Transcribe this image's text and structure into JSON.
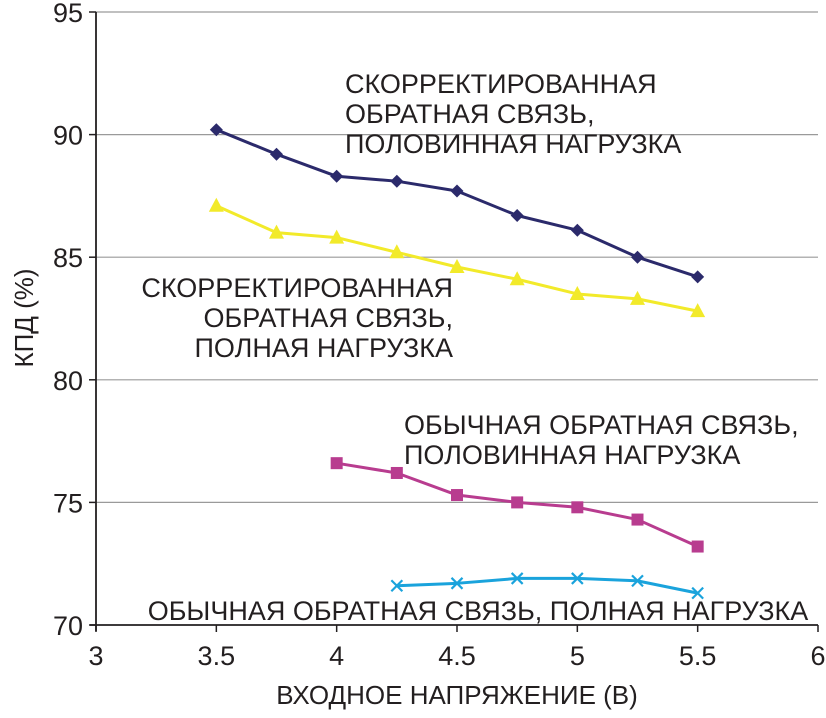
{
  "chart_data": {
    "type": "line",
    "xlabel": "ВХОДНОЕ НАПРЯЖЕНИЕ (В)",
    "ylabel": "КПД (%)",
    "xlim": [
      3,
      6
    ],
    "ylim": [
      70,
      95
    ],
    "x_ticks": [
      "3",
      "3.5",
      "4",
      "4.5",
      "5",
      "5.5",
      "6"
    ],
    "y_ticks": [
      "70",
      "75",
      "80",
      "85",
      "90",
      "95"
    ],
    "grid": "horizontal",
    "series": [
      {
        "label_lines": [
          "СКОРРЕКТИРОВАННАЯ",
          "ОБРАТНАЯ СВЯЗЬ,",
          "ПОЛОВИННАЯ НАГРУЗКА"
        ],
        "color": "#2b2a6b",
        "marker": "diamond",
        "x": [
          3.5,
          3.75,
          4.0,
          4.25,
          4.5,
          4.75,
          5.0,
          5.25,
          5.5
        ],
        "values": [
          90.2,
          89.2,
          88.3,
          88.1,
          87.7,
          86.7,
          86.1,
          85.0,
          84.2
        ]
      },
      {
        "label_lines": [
          "СКОРРЕКТИРОВАННАЯ",
          "ОБРАТНАЯ СВЯЗЬ,",
          "ПОЛНАЯ НАГРУЗКА"
        ],
        "color": "#f2ea2a",
        "marker": "triangle",
        "x": [
          3.5,
          3.75,
          4.0,
          4.25,
          4.5,
          4.75,
          5.0,
          5.25,
          5.5
        ],
        "values": [
          87.1,
          86.0,
          85.8,
          85.2,
          84.6,
          84.1,
          83.5,
          83.3,
          82.8
        ]
      },
      {
        "label_lines": [
          "ОБЫЧНАЯ ОБРАТНАЯ СВЯЗЬ,",
          "ПОЛОВИННАЯ НАГРУЗКА"
        ],
        "color": "#b83c8f",
        "marker": "square",
        "x": [
          4.0,
          4.25,
          4.5,
          4.75,
          5.0,
          5.25,
          5.5
        ],
        "values": [
          76.6,
          76.2,
          75.3,
          75.0,
          74.8,
          74.3,
          73.2
        ]
      },
      {
        "label_lines": [
          "ОБЫЧНАЯ ОБРАТНАЯ СВЯЗЬ, ПОЛНАЯ НАГРУЗКА"
        ],
        "color": "#1aa3dc",
        "marker": "x",
        "x": [
          4.25,
          4.5,
          4.75,
          5.0,
          5.25,
          5.5
        ],
        "values": [
          71.6,
          71.7,
          71.9,
          71.9,
          71.8,
          71.3
        ]
      }
    ]
  }
}
